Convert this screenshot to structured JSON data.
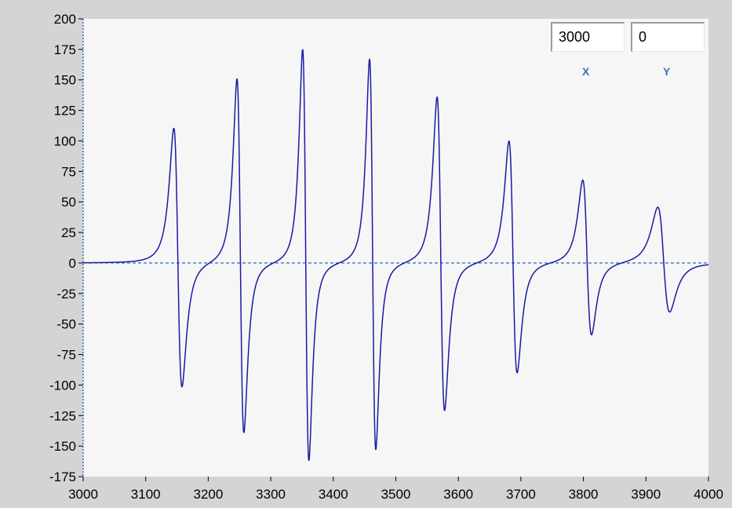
{
  "cursor": {
    "x_value": "3000",
    "y_value": "0",
    "x_label": "X",
    "y_label": "Y"
  },
  "colors": {
    "plot_background": "#f6f6f6",
    "frame": "#d4d4d4",
    "trace": "#1a1aa6",
    "zero_line": "#1a5aa6"
  },
  "chart_data": {
    "type": "line",
    "title": "",
    "xlabel": "",
    "ylabel": "",
    "xlim": [
      3000,
      4000
    ],
    "ylim": [
      -175,
      200
    ],
    "xticks": [
      3000,
      3100,
      3200,
      3300,
      3400,
      3500,
      3600,
      3700,
      3800,
      3900,
      4000
    ],
    "yticks": [
      200,
      175,
      150,
      125,
      100,
      75,
      50,
      25,
      0,
      -25,
      -50,
      -75,
      -100,
      -125,
      -150,
      -175
    ],
    "grid": false,
    "zero_reference_line": true,
    "series": [
      {
        "peaks": [
          {
            "center": 3151,
            "max": 110,
            "min": -102,
            "x_max": 3145,
            "x_min": 3158
          },
          {
            "center": 3251,
            "max": 151,
            "min": -139,
            "x_max": 3246,
            "x_min": 3257
          },
          {
            "center": 3356,
            "max": 175,
            "min": -162,
            "x_max": 3351,
            "x_min": 3361
          },
          {
            "center": 3463,
            "max": 167,
            "min": -153,
            "x_max": 3458,
            "x_min": 3468
          },
          {
            "center": 3571,
            "max": 136,
            "min": -121,
            "x_max": 3566,
            "x_min": 3578
          },
          {
            "center": 3688,
            "max": 100,
            "min": -90,
            "x_max": 3681,
            "x_min": 3694
          },
          {
            "center": 3806,
            "max": 68,
            "min": -59,
            "x_max": 3799,
            "x_min": 3813
          },
          {
            "center": 3928,
            "max": 46,
            "min": -40,
            "x_max": 3919,
            "x_min": 3938
          }
        ]
      }
    ]
  }
}
